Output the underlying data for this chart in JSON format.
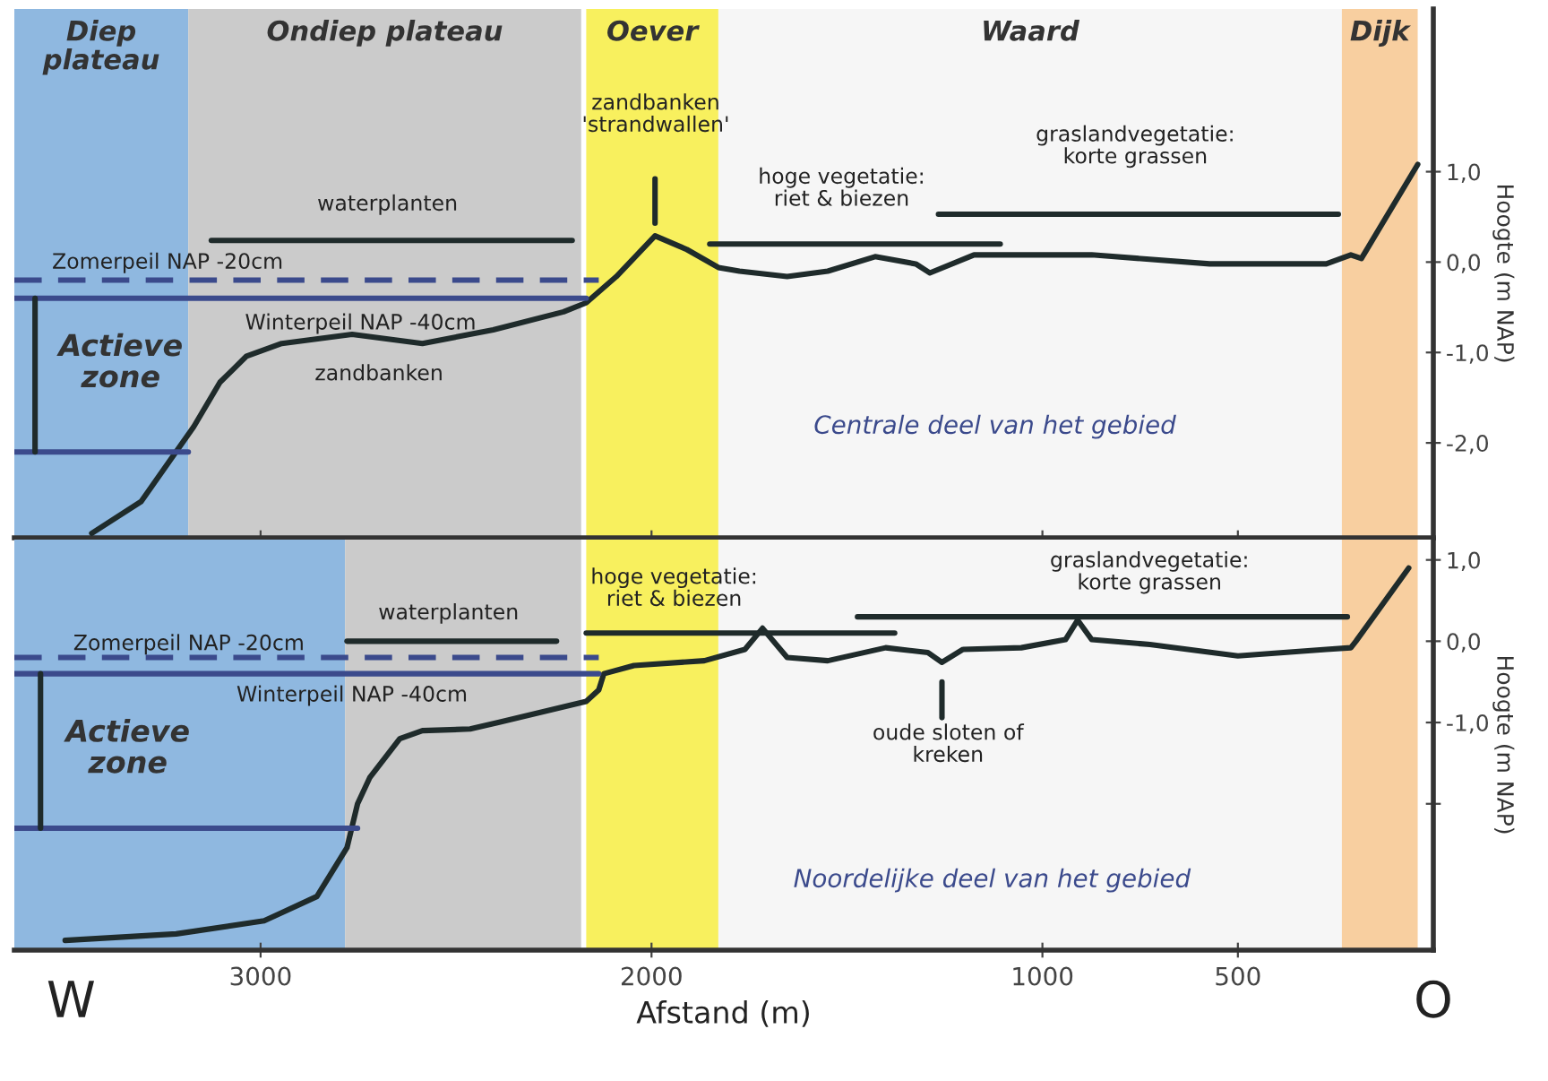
{
  "chart_data": [
    {
      "type": "line",
      "ylabel": "Hoogte (m NAP)",
      "xlim": [
        3630,
        0
      ],
      "xticks": [
        3000,
        2000,
        1000,
        500
      ],
      "ylim": [
        -3.05,
        2.8
      ],
      "yticks": [
        {
          "value": 1,
          "label": "1,0"
        },
        {
          "value": 0,
          "label": "0,0"
        },
        {
          "value": -1,
          "label": "-1,0"
        },
        {
          "value": -2,
          "label": "-2,0"
        }
      ],
      "tick_labels": "y",
      "grid": false,
      "bands": [
        {
          "axis": "x",
          "from": 3630,
          "to": 3185,
          "label": "Diep\nplateau",
          "color": "#8fb8e0"
        },
        {
          "axis": "x",
          "from": 3185,
          "to": 2180,
          "label": "Ondiep plateau",
          "color": "#cbcbcb"
        },
        {
          "axis": "x",
          "from": 2167,
          "to": 1829,
          "label": "Oever",
          "color": "#f8f05e"
        },
        {
          "axis": "x",
          "from": 1829,
          "to": 234,
          "label": "Waard",
          "color": "#f6f6f6"
        },
        {
          "axis": "x",
          "from": 234,
          "to": 40,
          "label": "Dijk",
          "color": "#f8cfa0"
        }
      ],
      "series": [
        {
          "color": "#1f2b2b",
          "x": [
            3432,
            3306,
            3171,
            3104,
            3036,
            2946,
            2766,
            2586,
            2405,
            2225,
            2167,
            2090,
            1991,
            1910,
            1829,
            1775,
            1653,
            1549,
            1428,
            1324,
            1288,
            1175,
            874,
            572,
            274,
            211,
            184,
            40
          ],
          "values": [
            -3.0,
            -2.65,
            -1.82,
            -1.33,
            -1.04,
            -0.9,
            -0.8,
            -0.9,
            -0.75,
            -0.55,
            -0.45,
            -0.16,
            0.29,
            0.14,
            -0.06,
            -0.1,
            -0.16,
            -0.1,
            0.06,
            -0.02,
            -0.12,
            0.08,
            0.08,
            -0.02,
            -0.02,
            0.08,
            0.04,
            1.08
          ]
        },
        {
          "color": "#3b4a8c",
          "line_style": "dashed",
          "x": [
            3630,
            2135
          ],
          "values": [
            -0.2,
            -0.2
          ]
        },
        {
          "color": "#3b4a8c",
          "x": [
            3630,
            2167
          ],
          "values": [
            -0.4,
            -0.4
          ]
        },
        {
          "color": "#3b4a8c",
          "x": [
            3630,
            3185
          ],
          "values": [
            -2.1,
            -2.1
          ]
        },
        {
          "color": "#1f2b2b",
          "x": [
            3577,
            3577
          ],
          "values": [
            -0.4,
            -2.1
          ]
        },
        {
          "color": "#1f2b2b",
          "x": [
            3126,
            2203
          ],
          "values": [
            0.24,
            0.24
          ]
        },
        {
          "color": "#1f2b2b",
          "x": [
            1851,
            1108
          ],
          "values": [
            0.2,
            0.2
          ]
        },
        {
          "color": "#1f2b2b",
          "x": [
            1266,
            243
          ],
          "values": [
            0.53,
            0.53
          ]
        },
        {
          "color": "#1f2b2b",
          "x": [
            1991,
            1991
          ],
          "values": [
            0.92,
            0.43
          ]
        }
      ],
      "annotations": [
        "waterplanten",
        "hoge vegetatie:\nriet & biezen",
        "graslandvegetatie:\nkorte grassen",
        "zandbanken\n'strandwallen'",
        "zandbanken",
        "Zomerpeil NAP -20cm",
        "Winterpeil NAP -40cm",
        "Actieve\nzone",
        "Centrale deel van het gebied"
      ]
    },
    {
      "type": "line",
      "xlabel": "Afstand (m)",
      "ylabel": "Hoogte (m NAP)",
      "xlim": [
        3630,
        0
      ],
      "xticks": [
        3000,
        2000,
        1000,
        500
      ],
      "ylim": [
        -3.8,
        1.25
      ],
      "yticks": [
        {
          "value": 1,
          "label": "1,0"
        },
        {
          "value": 0,
          "label": "0,0"
        },
        {
          "value": -1,
          "label": "-1,0"
        },
        {
          "value": -2,
          "label": null
        }
      ],
      "grid": false,
      "bands": [
        {
          "axis": "x",
          "from": 3630,
          "to": 2784,
          "color": "#8fb8e0"
        },
        {
          "axis": "x",
          "from": 2784,
          "to": 2180,
          "color": "#cbcbcb"
        },
        {
          "axis": "x",
          "from": 2167,
          "to": 1829,
          "color": "#f8f05e"
        },
        {
          "axis": "x",
          "from": 1829,
          "to": 234,
          "color": "#f6f6f6"
        },
        {
          "axis": "x",
          "from": 234,
          "to": 40,
          "color": "#f8cfa0"
        }
      ],
      "series": [
        {
          "color": "#1f2b2b",
          "x": [
            3500,
            3216,
            2991,
            2856,
            2779,
            2752,
            2721,
            2644,
            2586,
            2464,
            2392,
            2167,
            2135,
            2122,
            2045,
            1865,
            1761,
            1716,
            1653,
            1549,
            1401,
            1293,
            1257,
            1203,
            1054,
            941,
            910,
            874,
            725,
            500,
            274,
            211,
            198,
            63
          ],
          "values": [
            -3.68,
            -3.6,
            -3.44,
            -3.14,
            -2.54,
            -2.0,
            -1.68,
            -1.2,
            -1.1,
            -1.08,
            -1.0,
            -0.74,
            -0.6,
            -0.4,
            -0.3,
            -0.24,
            -0.1,
            0.16,
            -0.2,
            -0.24,
            -0.08,
            -0.14,
            -0.26,
            -0.1,
            -0.08,
            0.02,
            0.26,
            0.02,
            -0.04,
            -0.18,
            -0.1,
            -0.08,
            0.0,
            0.9
          ]
        },
        {
          "color": "#3b4a8c",
          "line_style": "dashed",
          "x": [
            3630,
            2135
          ],
          "values": [
            -0.2,
            -0.2
          ]
        },
        {
          "color": "#3b4a8c",
          "x": [
            3630,
            2135
          ],
          "values": [
            -0.4,
            -0.4
          ]
        },
        {
          "color": "#3b4a8c",
          "x": [
            3630,
            2752
          ],
          "values": [
            -2.3,
            -2.3
          ]
        },
        {
          "color": "#1f2b2b",
          "x": [
            3563,
            3563
          ],
          "values": [
            -0.4,
            -2.3
          ]
        },
        {
          "color": "#1f2b2b",
          "x": [
            2779,
            2243
          ],
          "values": [
            0.0,
            0.0
          ]
        },
        {
          "color": "#1f2b2b",
          "x": [
            2167,
            1378
          ],
          "values": [
            0.1,
            0.1
          ]
        },
        {
          "color": "#1f2b2b",
          "x": [
            1473,
            220
          ],
          "values": [
            0.3,
            0.3
          ]
        },
        {
          "color": "#1f2b2b",
          "x": [
            1257,
            1257
          ],
          "values": [
            -0.94,
            -0.5
          ]
        }
      ],
      "annotations": [
        "waterplanten",
        "hoge vegetatie:\nriet & biezen",
        "graslandvegetatie:\nkorte grassen",
        "oude sloten of\nkreken",
        "Zomerpeil NAP -20cm",
        "Winterpeil NAP -40cm",
        "Actieve\nzone",
        "Noordelijke deel van het gebied",
        "W",
        "O"
      ]
    }
  ]
}
